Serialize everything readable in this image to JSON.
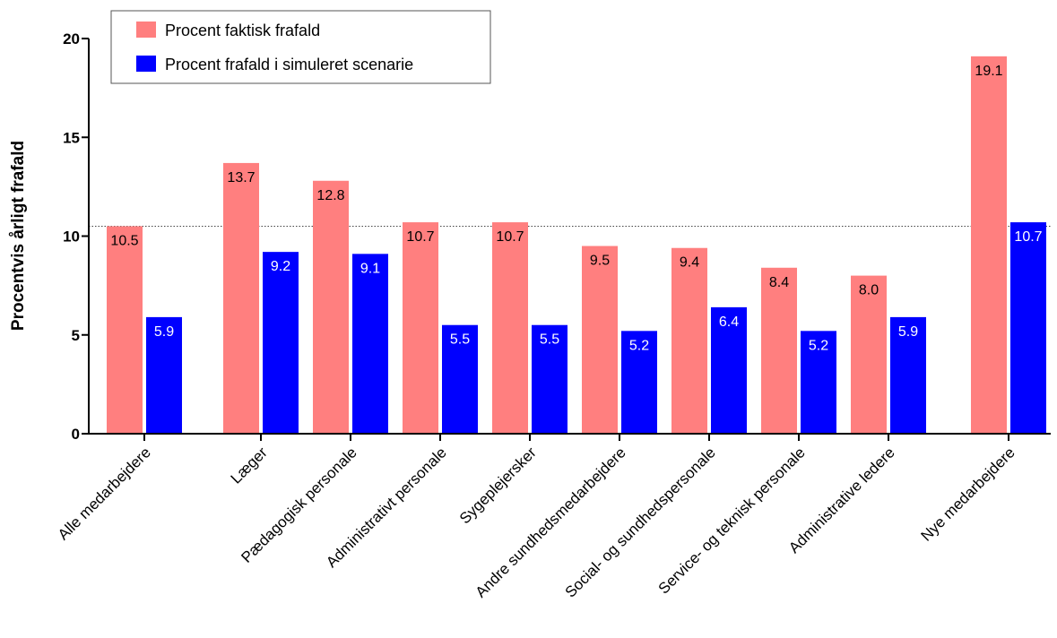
{
  "chart_data": {
    "type": "bar",
    "ylabel": "Procentvis årligt frafald",
    "xlabel": "",
    "ylim": [
      0,
      20
    ],
    "yticks": [
      0,
      5,
      10,
      15,
      20
    ],
    "reference_line": 10.5,
    "legend_position": "top-left",
    "categories": [
      "Alle medarbejdere",
      "Læger",
      "Pædagogisk personale",
      "Administrativt personale",
      "Sygeplejersker",
      "Andre sundhedsmedarbejdere",
      "Social- og sundhedspersonale",
      "Service- og teknisk personale",
      "Administrative ledere",
      "Nye medarbejdere"
    ],
    "series": [
      {
        "name": "Procent faktisk frafald",
        "color": "#ff7f7f",
        "values": [
          10.5,
          13.7,
          12.8,
          10.7,
          10.7,
          9.5,
          9.4,
          8.4,
          8.0,
          19.1
        ],
        "labels": [
          "10.5",
          "13.7",
          "12.8",
          "10.7",
          "10.7",
          "9.5",
          "9.4",
          "8.4",
          "8.0",
          "19.1"
        ]
      },
      {
        "name": "Procent frafald i simuleret scenarie",
        "color": "#0000ff",
        "values": [
          5.9,
          9.2,
          9.1,
          5.5,
          5.5,
          5.2,
          6.4,
          5.2,
          5.9,
          10.7
        ],
        "labels": [
          "5.9",
          "9.2",
          "9.1",
          "5.5",
          "5.5",
          "5.2",
          "6.4",
          "5.2",
          "5.9",
          "10.7"
        ]
      }
    ]
  }
}
